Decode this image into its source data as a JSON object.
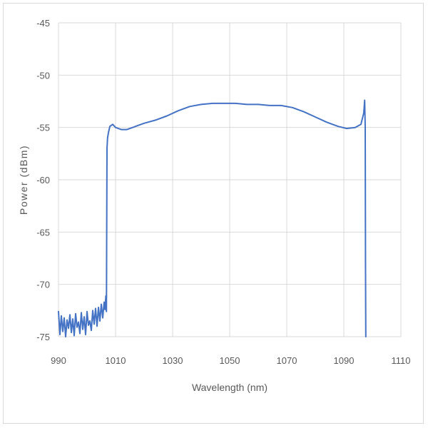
{
  "chart_data": {
    "type": "line",
    "xlabel": "Wavelength (nm)",
    "ylabel": "Power (dBm)",
    "xlim": [
      990,
      1110
    ],
    "ylim": [
      -75,
      -45
    ],
    "x_ticks": [
      990,
      1010,
      1030,
      1050,
      1070,
      1090,
      1110
    ],
    "y_ticks": [
      -45,
      -50,
      -55,
      -60,
      -65,
      -70,
      -75
    ],
    "grid": true,
    "legend": "none",
    "series_color": "#4472c4",
    "series": [
      {
        "x": [
          990.0,
          990.5,
          991.0,
          991.5,
          992.0,
          992.5,
          993.0,
          993.5,
          994.0,
          994.5,
          995.0,
          995.5,
          996.0,
          996.5,
          997.0,
          997.5,
          998.0,
          998.5,
          999.0,
          999.5,
          1000.0,
          1000.5,
          1001.0,
          1001.5,
          1002.0,
          1002.5,
          1003.0,
          1003.5,
          1004.0,
          1004.5,
          1005.0,
          1005.5,
          1006.0,
          1006.3,
          1006.6,
          1006.8,
          1007.0,
          1007.2,
          1007.5,
          1008.0,
          1009.0,
          1010.0,
          1012.0,
          1014.0,
          1016.0,
          1018.0,
          1020.0,
          1024.0,
          1028.0,
          1032.0,
          1036.0,
          1040.0,
          1044.0,
          1048.0,
          1052.0,
          1056.0,
          1060.0,
          1064.0,
          1068.0,
          1072.0,
          1076.0,
          1080.0,
          1084.0,
          1088.0,
          1091.0,
          1094.0,
          1096.0,
          1097.0,
          1097.3,
          1097.5,
          1097.6,
          1097.7
        ],
        "y": [
          -72.6,
          -74.8,
          -73.0,
          -74.5,
          -73.2,
          -75.0,
          -73.4,
          -74.2,
          -72.9,
          -74.6,
          -73.3,
          -74.9,
          -72.8,
          -74.1,
          -73.6,
          -74.7,
          -72.7,
          -74.3,
          -73.1,
          -74.8,
          -72.6,
          -73.9,
          -73.5,
          -74.4,
          -72.5,
          -73.8,
          -72.3,
          -74.0,
          -72.2,
          -73.5,
          -71.9,
          -73.2,
          -71.7,
          -72.4,
          -71.1,
          -72.6,
          -57.0,
          -56.0,
          -55.5,
          -54.9,
          -54.7,
          -55.0,
          -55.2,
          -55.2,
          -55.0,
          -54.8,
          -54.6,
          -54.3,
          -53.9,
          -53.4,
          -53.0,
          -52.8,
          -52.7,
          -52.7,
          -52.7,
          -52.8,
          -52.8,
          -52.9,
          -52.9,
          -53.1,
          -53.5,
          -54.0,
          -54.5,
          -54.9,
          -55.1,
          -55.0,
          -54.7,
          -53.6,
          -52.4,
          -55.0,
          -68.0,
          -75.0
        ]
      }
    ]
  }
}
